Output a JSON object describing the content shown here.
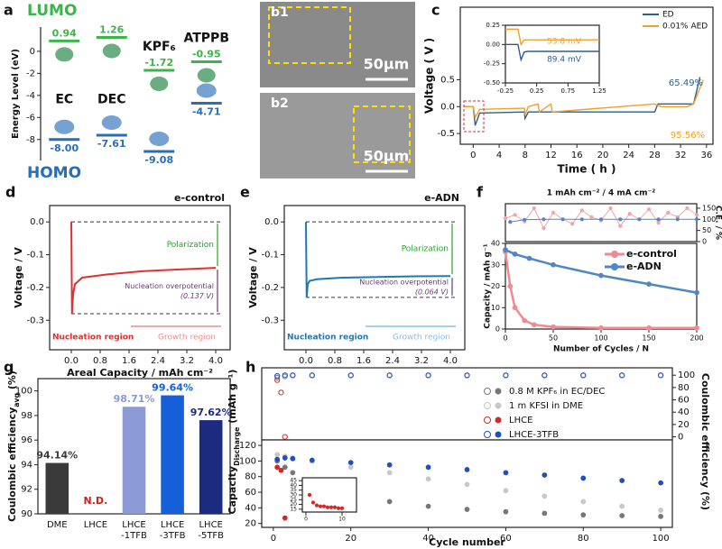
{
  "images": [
    {
      "panel": "b1",
      "scale_bar": "50μm"
    },
    {
      "panel": "b2",
      "scale_bar": "50μm"
    }
  ],
  "chart_data": [
    {
      "type": "levels",
      "panel": "a",
      "title": "LUMO",
      "subtitle": "HOMO",
      "ylabel": "Energy Level (eV)",
      "ylim": [
        -9.9,
        2.2
      ],
      "yticks": [
        0,
        -2,
        -4,
        -6,
        -8
      ],
      "categories": [
        "EC",
        "DEC",
        "KPF₆",
        "ATPPB"
      ],
      "lumo": {
        "color": "#3cb44b",
        "values": [
          0.94,
          1.26,
          -1.72,
          -0.95
        ]
      },
      "homo": {
        "color": "#2a6db5",
        "values": [
          -8,
          -7.61,
          -9.08,
          -4.71
        ],
        "value_labels": [
          "-8.00",
          "-7.61",
          "-9.08",
          "-4.71"
        ]
      }
    },
    {
      "type": "line",
      "panel": "c",
      "xlabel": "Time ( h )",
      "ylabel": "Voltage ( V )",
      "xlim": [
        -2,
        37
      ],
      "xticks": [
        0,
        4,
        8,
        12,
        16,
        20,
        24,
        28,
        32,
        36
      ],
      "ylim": [
        -0.7,
        1.85
      ],
      "yticks": [
        -0.5,
        {
          "value": 0,
          "label": "0.0"
        },
        0.5
      ],
      "series": [
        {
          "name": "ED",
          "color": "#2f5d8a",
          "x": [
            -1.5,
            0,
            0.3,
            1,
            7.9,
            8,
            8.5,
            28,
            28.5,
            29,
            34,
            35
          ],
          "values": [
            0,
            0,
            -0.35,
            -0.12,
            -0.1,
            -0.22,
            -0.1,
            -0.1,
            0.05,
            0.05,
            0.05,
            0.55
          ]
        },
        {
          "name": "0.01% AED",
          "color": "#f0a030",
          "x": [
            -1.5,
            0,
            0.3,
            1,
            7.9,
            8,
            8.5,
            10,
            10.2,
            12,
            12.2,
            28,
            29,
            33,
            34,
            35.5
          ],
          "values": [
            0,
            0,
            -0.2,
            -0.05,
            -0.03,
            -0.15,
            0,
            0.05,
            -0.1,
            0.05,
            -0.1,
            0.05,
            0,
            0,
            0.05,
            0.5
          ]
        }
      ],
      "annotations": [
        "65.49%",
        "95.56%"
      ]
    },
    {
      "type": "line",
      "xlim": [
        -0.25,
        1.25
      ],
      "xticks": [
        {
          "value": -0.25,
          "label": "-0.25"
        },
        0.25,
        0.75,
        1.25
      ],
      "ylim": [
        -0.5,
        0.25
      ],
      "yticks": [
        {
          "value": -0.5,
          "label": "-0.50"
        },
        {
          "value": -0.25,
          "label": "-0.25"
        },
        {
          "value": 0,
          "label": "0.00"
        },
        0.25
      ],
      "series": [
        {
          "color": "#2f5d8a",
          "x": [
            -0.25,
            -0.05,
            0,
            0.05,
            0.1,
            1.25
          ],
          "values": [
            0,
            0,
            -0.2,
            -0.1,
            -0.09,
            -0.09
          ]
        },
        {
          "color": "#f0a030",
          "x": [
            -0.25,
            -0.05,
            0,
            0.05,
            0.1,
            1.25
          ],
          "values": [
            0.2,
            0.2,
            0,
            0.06,
            0.06,
            0.06
          ]
        }
      ],
      "annotations": [
        "53.8 mV",
        "89.4 mV"
      ]
    },
    {
      "type": "line",
      "panel": "d",
      "title": "e-control",
      "xlabel": "Areal Capacity / mAh cm⁻²",
      "ylabel": "Voltage / V",
      "xlim": [
        -0.6,
        4.4
      ],
      "xticks": [
        {
          "value": 0,
          "label": "0.0"
        },
        0.8,
        1.6,
        2.4,
        3.2,
        {
          "value": 4,
          "label": "4.0"
        }
      ],
      "ylim": [
        -0.39,
        0.05
      ],
      "yticks": [
        {
          "value": 0,
          "label": "0.0"
        },
        -0.1,
        -0.2,
        -0.3
      ],
      "series": [
        {
          "color": "#e03030",
          "x": [
            0,
            0.02,
            0.05,
            0.1,
            0.3,
            1,
            2,
            3,
            4
          ],
          "values": [
            0,
            -0.28,
            -0.22,
            -0.19,
            -0.17,
            -0.16,
            -0.15,
            -0.145,
            -0.14
          ]
        }
      ],
      "annotations": [
        "Polarization",
        "Nucleation overpotential",
        "(0.137 V)",
        "Nucleation region",
        "Growth region"
      ]
    },
    {
      "type": "line",
      "panel": "e",
      "title": "e-ADN",
      "ylabel": "Voltage / V",
      "xlim": [
        -0.6,
        4.4
      ],
      "xticks": [
        {
          "value": 0,
          "label": "0.0"
        },
        0.8,
        1.6,
        2.4,
        3.2,
        {
          "value": 4,
          "label": "4.0"
        }
      ],
      "ylim": [
        -0.39,
        0.05
      ],
      "yticks": [
        {
          "value": 0,
          "label": "0.0"
        },
        -0.1,
        -0.2,
        -0.3
      ],
      "series": [
        {
          "color": "#1e78b4",
          "x": [
            0,
            0.02,
            0.05,
            0.1,
            0.3,
            1,
            2,
            3,
            4
          ],
          "values": [
            0,
            -0.23,
            -0.19,
            -0.18,
            -0.175,
            -0.17,
            -0.168,
            -0.166,
            -0.165
          ]
        }
      ],
      "annotations": [
        "Polarization",
        "Nucleation overpotential",
        "(0.064 V)",
        "Nucleation region",
        "Growth region"
      ]
    },
    {
      "type": "line",
      "markers": true,
      "title": "1 mAh cm⁻² / 4 mA cm⁻²",
      "ylabel": "C.E. / %",
      "xlim": [
        0,
        200
      ],
      "ylim": [
        0,
        170
      ],
      "yticks": [
        0,
        50,
        100,
        150
      ],
      "series": [
        {
          "color": "#f4a3a8",
          "x": [
            0,
            10,
            20,
            30,
            40,
            50,
            60,
            70,
            80,
            90,
            100,
            110,
            120,
            130,
            140,
            150,
            160,
            170,
            180,
            190,
            200
          ],
          "values": [
            105,
            120,
            90,
            150,
            60,
            130,
            100,
            80,
            140,
            110,
            95,
            150,
            70,
            125,
            100,
            145,
            85,
            130,
            110,
            150,
            120
          ]
        },
        {
          "color": "#4f86c6",
          "x": [
            5,
            20,
            40,
            60,
            80,
            100,
            120,
            140,
            160,
            180,
            200
          ],
          "values": [
            88,
            98,
            100,
            100,
            100,
            100,
            100,
            100,
            100,
            100,
            100
          ]
        }
      ]
    },
    {
      "type": "line",
      "markers": true,
      "panel": "f",
      "xlabel": "Number of Cycles / N",
      "ylabel": "Capacity / mAh g⁻¹",
      "xlim": [
        0,
        200
      ],
      "xticks": [
        0,
        50,
        100,
        150,
        200
      ],
      "ylim": [
        0,
        40
      ],
      "yticks": [
        0,
        10,
        20,
        30,
        40
      ],
      "series": [
        {
          "name": "e-control",
          "color": "#f08a90",
          "x": [
            0,
            5,
            10,
            20,
            30,
            50,
            100,
            150,
            200
          ],
          "values": [
            36,
            20,
            10,
            4,
            2,
            1,
            0.5,
            0.5,
            0.5
          ]
        },
        {
          "name": "e-ADN",
          "color": "#4f86c6",
          "x": [
            0,
            10,
            25,
            50,
            100,
            150,
            200
          ],
          "values": [
            37,
            35,
            33,
            30,
            25,
            21,
            17
          ]
        }
      ]
    },
    {
      "type": "bar",
      "panel": "g",
      "ylabel": [
        "Coulombic efficiency",
        "avg",
        " (%)"
      ],
      "categories": [
        "DME",
        "LHCE",
        "LHCE\n-1TFB",
        "LHCE\n-3TFB",
        "LHCE\n-5TFB"
      ],
      "values": [
        94.14,
        null,
        98.71,
        99.64,
        97.62
      ],
      "value_labels": [
        "94.14%",
        "N.D.",
        "98.71%",
        "99.64%",
        "97.62%"
      ],
      "colors": [
        "#3a3a3a",
        "#d0201a",
        "#8c9bd5",
        "#1560d8",
        "#1c2a80"
      ],
      "ylim": [
        90,
        101
      ],
      "yticks": [
        90,
        92,
        94,
        96,
        98,
        100
      ]
    },
    {
      "type": "scatter",
      "marker": "open",
      "ylabel": "Coulombic efficiency (%)",
      "xlim": [
        -3,
        103
      ],
      "ylim": [
        -5,
        112
      ],
      "yticks": [
        0,
        20,
        40,
        60,
        80,
        100
      ],
      "series": [
        {
          "name": "0.8 M KPF₆ in EC/DEC",
          "color": "#777777",
          "x": [
            1,
            3,
            5,
            10,
            20,
            30,
            40,
            50,
            60,
            70,
            80,
            90,
            100
          ],
          "values": [
            96,
            98,
            99,
            99,
            99,
            99,
            99,
            99,
            99,
            99,
            99,
            99,
            99
          ]
        },
        {
          "name": "1 m KFSI in DME",
          "color": "#c8c8c8",
          "x": [
            1,
            3,
            5,
            10,
            20,
            30,
            40,
            50,
            60,
            70,
            80,
            90,
            100
          ],
          "values": [
            98,
            99,
            99,
            99,
            99,
            99,
            99,
            99,
            99,
            99,
            99,
            99,
            99
          ]
        },
        {
          "name": "LHCE",
          "color": "#d62728",
          "x": [
            1,
            2,
            3
          ],
          "values": [
            92,
            72,
            0
          ]
        },
        {
          "name": "LHCE-3TFB",
          "color": "#1f4fc1",
          "x": [
            1,
            3,
            5,
            10,
            20,
            30,
            40,
            50,
            60,
            70,
            80,
            90,
            100
          ],
          "values": [
            99,
            100,
            100,
            100,
            100,
            100,
            100,
            100,
            100,
            100,
            100,
            100,
            100
          ]
        }
      ]
    },
    {
      "type": "scatter",
      "panel": "h",
      "xlabel": "Cycle number",
      "ylabel": [
        "Capacity",
        "Discharge",
        " (mAh g⁻¹)"
      ],
      "xlim": [
        -3,
        103
      ],
      "xticks": [
        0,
        20,
        40,
        60,
        80,
        100
      ],
      "ylim": [
        15,
        127
      ],
      "yticks": [
        20,
        40,
        60,
        80,
        100,
        120
      ],
      "series": [
        {
          "color": "#777777",
          "x": [
            1,
            3,
            5,
            10,
            20,
            30,
            40,
            50,
            60,
            70,
            80,
            90,
            100
          ],
          "values": [
            100,
            92,
            85,
            75,
            58,
            48,
            42,
            38,
            35,
            33,
            31,
            30,
            29
          ]
        },
        {
          "color": "#c8c8c8",
          "x": [
            1,
            3,
            5,
            10,
            20,
            30,
            40,
            50,
            60,
            70,
            80,
            90,
            100
          ],
          "values": [
            108,
            106,
            104,
            100,
            92,
            85,
            77,
            70,
            62,
            55,
            48,
            42,
            37
          ]
        },
        {
          "color": "#d62728",
          "x": [
            1,
            2,
            3
          ],
          "values": [
            92,
            88,
            27
          ]
        },
        {
          "color": "#1f4fc1",
          "x": [
            1,
            3,
            5,
            10,
            20,
            30,
            40,
            50,
            60,
            70,
            80,
            90,
            100
          ],
          "values": [
            102,
            104,
            103,
            101,
            98,
            95,
            92,
            89,
            85,
            82,
            78,
            75,
            72
          ]
        }
      ]
    },
    {
      "type": "scatter",
      "xlim": [
        -1,
        14
      ],
      "xticks": [
        0,
        10
      ],
      "ylim": [
        12,
        48
      ],
      "yticks": [
        15,
        20,
        25,
        30,
        35,
        40,
        45
      ],
      "series": [
        {
          "color": "#d62728",
          "x": [
            1,
            2,
            3,
            4,
            5,
            6,
            7,
            8,
            9,
            10
          ],
          "values": [
            30,
            22,
            19,
            18,
            18,
            17,
            17,
            17,
            16,
            16
          ]
        }
      ]
    }
  ]
}
